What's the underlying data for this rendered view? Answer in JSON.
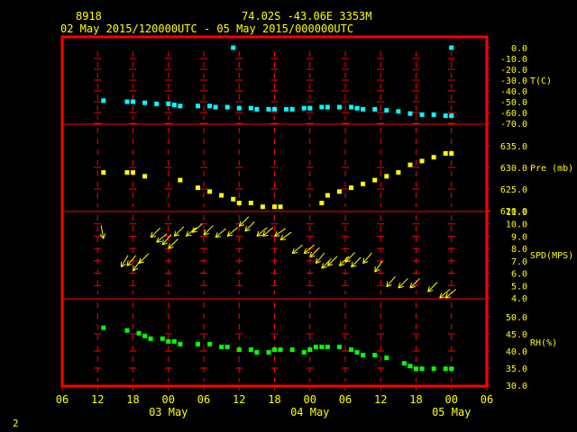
{
  "header": {
    "station": "8918",
    "location": "74.02S   -43.06E   3353M",
    "period": "02 May 2015/120000UTC - 05 May 2015/000000UTC"
  },
  "corner_label": "2",
  "colors": {
    "frame": "#ff0000",
    "axis_text": "#ffff00",
    "header_text": "#ffff00",
    "temperature": "#00ffff",
    "pressure": "#ffff00",
    "wind": "#ffff00",
    "humidity": "#00ff00"
  },
  "chart_data": {
    "type": "scatter",
    "x_axis": {
      "unit": "hours since 02 May 2015 00 UTC",
      "range": [
        6,
        78
      ],
      "tick_values": [
        6,
        12,
        18,
        24,
        30,
        36,
        42,
        48,
        54,
        60,
        66,
        72,
        78
      ],
      "tick_labels": [
        "06",
        "12",
        "18",
        "00",
        "06",
        "12",
        "18",
        "00",
        "06",
        "12",
        "18",
        "00",
        "06"
      ],
      "day_labels": [
        {
          "x": 24,
          "label": "03 May"
        },
        {
          "x": 48,
          "label": "04 May"
        },
        {
          "x": 72,
          "label": "05 May"
        }
      ]
    },
    "panels": [
      {
        "name": "T(C)",
        "label": "T(C)",
        "ylim": [
          -70,
          0
        ],
        "ticks": [
          "0.0",
          "-10.0",
          "-20.0",
          "-30.0",
          "-40.0",
          "-50.0",
          "-60.0",
          "-70.0"
        ],
        "series": [
          {
            "x": 13,
            "y": -49
          },
          {
            "x": 17,
            "y": -50
          },
          {
            "x": 18,
            "y": -50
          },
          {
            "x": 20,
            "y": -51
          },
          {
            "x": 22,
            "y": -52
          },
          {
            "x": 24,
            "y": -52
          },
          {
            "x": 25,
            "y": -53
          },
          {
            "x": 26,
            "y": -54
          },
          {
            "x": 29,
            "y": -54
          },
          {
            "x": 31,
            "y": -54
          },
          {
            "x": 32,
            "y": -55
          },
          {
            "x": 34,
            "y": -55
          },
          {
            "x": 36,
            "y": -56
          },
          {
            "x": 38,
            "y": -56
          },
          {
            "x": 39,
            "y": -57
          },
          {
            "x": 41,
            "y": -57
          },
          {
            "x": 42,
            "y": -57
          },
          {
            "x": 44,
            "y": -57
          },
          {
            "x": 45,
            "y": -57
          },
          {
            "x": 47,
            "y": -56
          },
          {
            "x": 48,
            "y": -56
          },
          {
            "x": 50,
            "y": -55
          },
          {
            "x": 51,
            "y": -55
          },
          {
            "x": 53,
            "y": -55
          },
          {
            "x": 55,
            "y": -55
          },
          {
            "x": 56,
            "y": -56
          },
          {
            "x": 57,
            "y": -57
          },
          {
            "x": 59,
            "y": -57
          },
          {
            "x": 61,
            "y": -58
          },
          {
            "x": 63,
            "y": -59
          },
          {
            "x": 65,
            "y": -61
          },
          {
            "x": 67,
            "y": -62
          },
          {
            "x": 69,
            "y": -62
          },
          {
            "x": 71,
            "y": -63
          },
          {
            "x": 72,
            "y": -63
          },
          {
            "x": 35,
            "y": 0
          },
          {
            "x": 72,
            "y": 0
          }
        ]
      },
      {
        "name": "Pre (mb)",
        "label": "Pre (mb)",
        "ylim": [
          620,
          637
        ],
        "ticks": [
          "635.0",
          "630.0",
          "625.0",
          "620.0"
        ],
        "series": [
          {
            "x": 13,
            "y": 630
          },
          {
            "x": 17,
            "y": 630
          },
          {
            "x": 18,
            "y": 630
          },
          {
            "x": 20,
            "y": 629
          },
          {
            "x": 26,
            "y": 628
          },
          {
            "x": 29,
            "y": 626
          },
          {
            "x": 31,
            "y": 625
          },
          {
            "x": 33,
            "y": 624
          },
          {
            "x": 35,
            "y": 623
          },
          {
            "x": 36,
            "y": 622
          },
          {
            "x": 38,
            "y": 622
          },
          {
            "x": 40,
            "y": 621
          },
          {
            "x": 42,
            "y": 621
          },
          {
            "x": 43,
            "y": 621
          },
          {
            "x": 50,
            "y": 622
          },
          {
            "x": 51,
            "y": 624
          },
          {
            "x": 53,
            "y": 625
          },
          {
            "x": 55,
            "y": 626
          },
          {
            "x": 57,
            "y": 627
          },
          {
            "x": 59,
            "y": 628
          },
          {
            "x": 61,
            "y": 629
          },
          {
            "x": 63,
            "y": 630
          },
          {
            "x": 65,
            "y": 632
          },
          {
            "x": 67,
            "y": 633
          },
          {
            "x": 69,
            "y": 634
          },
          {
            "x": 71,
            "y": 635
          },
          {
            "x": 72,
            "y": 635
          }
        ]
      },
      {
        "name": "SPD(MPS)",
        "label": "SPD(MPS)",
        "ylim": [
          4,
          11
        ],
        "ticks": [
          "11.0",
          "10.0",
          "9.0",
          "8.0",
          "7.0",
          "6.0",
          "5.0",
          "4.0"
        ],
        "series": [
          {
            "x": 13,
            "y": 8.8,
            "dir": 350
          },
          {
            "x": 16,
            "y": 6.5,
            "dir": 30
          },
          {
            "x": 17,
            "y": 6.6,
            "dir": 40
          },
          {
            "x": 18,
            "y": 6.2,
            "dir": 35
          },
          {
            "x": 19,
            "y": 6.8,
            "dir": 45
          },
          {
            "x": 21,
            "y": 8.9,
            "dir": 45
          },
          {
            "x": 22,
            "y": 8.5,
            "dir": 50
          },
          {
            "x": 23,
            "y": 8.3,
            "dir": 40
          },
          {
            "x": 24,
            "y": 8,
            "dir": 45
          },
          {
            "x": 25,
            "y": 9,
            "dir": 45
          },
          {
            "x": 27,
            "y": 9,
            "dir": 50
          },
          {
            "x": 28,
            "y": 9.3,
            "dir": 50
          },
          {
            "x": 30,
            "y": 9.1,
            "dir": 45
          },
          {
            "x": 32,
            "y": 8.9,
            "dir": 50
          },
          {
            "x": 34,
            "y": 9,
            "dir": 50
          },
          {
            "x": 36,
            "y": 9.8,
            "dir": 45
          },
          {
            "x": 37,
            "y": 9.4,
            "dir": 45
          },
          {
            "x": 39,
            "y": 9,
            "dir": 50
          },
          {
            "x": 40,
            "y": 9,
            "dir": 50
          },
          {
            "x": 42,
            "y": 9,
            "dir": 55
          },
          {
            "x": 43,
            "y": 8.7,
            "dir": 55
          },
          {
            "x": 45,
            "y": 7.6,
            "dir": 50
          },
          {
            "x": 47,
            "y": 7.6,
            "dir": 50
          },
          {
            "x": 48,
            "y": 7.3,
            "dir": 45
          },
          {
            "x": 49,
            "y": 6.8,
            "dir": 40
          },
          {
            "x": 50,
            "y": 6.4,
            "dir": 45
          },
          {
            "x": 51,
            "y": 6.6,
            "dir": 45
          },
          {
            "x": 53,
            "y": 6.6,
            "dir": 45
          },
          {
            "x": 54,
            "y": 6.9,
            "dir": 45
          },
          {
            "x": 55,
            "y": 6.5,
            "dir": 45
          },
          {
            "x": 57,
            "y": 6.8,
            "dir": 40
          },
          {
            "x": 59,
            "y": 6.1,
            "dir": 35
          },
          {
            "x": 61,
            "y": 4.9,
            "dir": 40
          },
          {
            "x": 63,
            "y": 4.8,
            "dir": 45
          },
          {
            "x": 65,
            "y": 4.8,
            "dir": 45
          },
          {
            "x": 68,
            "y": 4.5,
            "dir": 45
          },
          {
            "x": 70,
            "y": 4,
            "dir": 50
          },
          {
            "x": 71,
            "y": 4,
            "dir": 50
          }
        ]
      },
      {
        "name": "RH(%)",
        "label": "RH(%)",
        "ylim": [
          30,
          55
        ],
        "ticks": [
          "50.0",
          "45.0",
          "40.0",
          "35.0",
          "30.0"
        ],
        "series": [
          {
            "x": 13,
            "y": 51
          },
          {
            "x": 17,
            "y": 50
          },
          {
            "x": 19,
            "y": 49
          },
          {
            "x": 20,
            "y": 48
          },
          {
            "x": 21,
            "y": 47
          },
          {
            "x": 23,
            "y": 47
          },
          {
            "x": 24,
            "y": 46
          },
          {
            "x": 25,
            "y": 46
          },
          {
            "x": 26,
            "y": 45
          },
          {
            "x": 29,
            "y": 45
          },
          {
            "x": 31,
            "y": 45
          },
          {
            "x": 33,
            "y": 44
          },
          {
            "x": 34,
            "y": 44
          },
          {
            "x": 36,
            "y": 43
          },
          {
            "x": 38,
            "y": 43
          },
          {
            "x": 39,
            "y": 42
          },
          {
            "x": 41,
            "y": 42
          },
          {
            "x": 42,
            "y": 43
          },
          {
            "x": 43,
            "y": 43
          },
          {
            "x": 45,
            "y": 43
          },
          {
            "x": 47,
            "y": 42
          },
          {
            "x": 48,
            "y": 43
          },
          {
            "x": 49,
            "y": 44
          },
          {
            "x": 50,
            "y": 44
          },
          {
            "x": 51,
            "y": 44
          },
          {
            "x": 53,
            "y": 44
          },
          {
            "x": 55,
            "y": 43
          },
          {
            "x": 56,
            "y": 42
          },
          {
            "x": 57,
            "y": 41
          },
          {
            "x": 59,
            "y": 41
          },
          {
            "x": 61,
            "y": 40
          },
          {
            "x": 64,
            "y": 38
          },
          {
            "x": 65,
            "y": 37
          },
          {
            "x": 66,
            "y": 36
          },
          {
            "x": 67,
            "y": 36
          },
          {
            "x": 69,
            "y": 36
          },
          {
            "x": 71,
            "y": 36
          },
          {
            "x": 72,
            "y": 36
          }
        ]
      }
    ]
  }
}
